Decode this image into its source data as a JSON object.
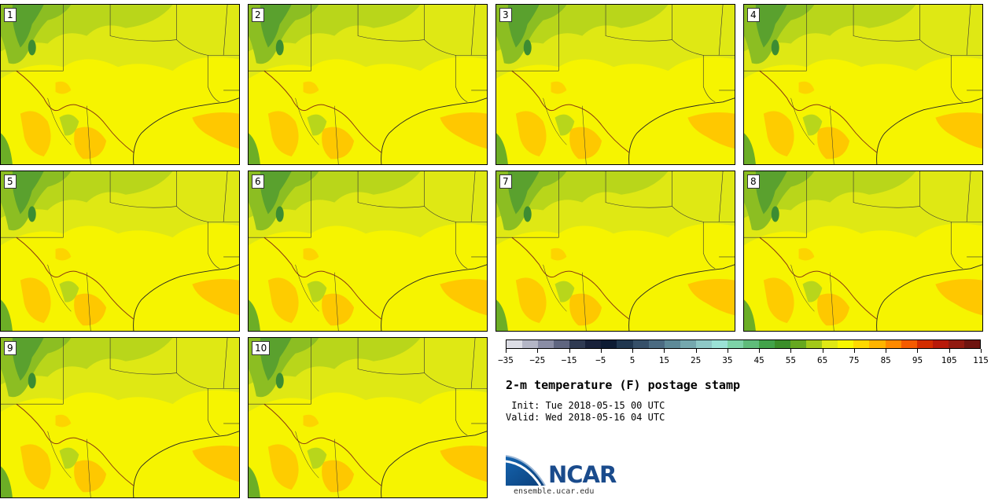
{
  "panels": [
    {
      "label": "1"
    },
    {
      "label": "2"
    },
    {
      "label": "3"
    },
    {
      "label": "4"
    },
    {
      "label": "5"
    },
    {
      "label": "6"
    },
    {
      "label": "7"
    },
    {
      "label": "8"
    },
    {
      "label": "9"
    },
    {
      "label": "10"
    }
  ],
  "colorbar": {
    "colors": [
      "#dcdde5",
      "#b4b6c6",
      "#8a8da5",
      "#5f6580",
      "#2f3a52",
      "#18213a",
      "#0d1b33",
      "#203750",
      "#365069",
      "#4b6b82",
      "#5e8a98",
      "#75a8ae",
      "#8ec8c6",
      "#9be2d6",
      "#7ed3a8",
      "#5fbc7a",
      "#42a34a",
      "#3b8f2a",
      "#66a81f",
      "#a3c91a",
      "#dfe814",
      "#f8f700",
      "#ffd800",
      "#ffb400",
      "#ff8a00",
      "#f55b00",
      "#d42d00",
      "#b81a0a",
      "#921a10",
      "#6f1410"
    ],
    "tick_labels": [
      "−35",
      "−25",
      "−15",
      "−5",
      "5",
      "15",
      "25",
      "35",
      "45",
      "55",
      "65",
      "75",
      "85",
      "95",
      "105",
      "115"
    ]
  },
  "title": "2-m temperature (F) postage stamp",
  "init": " Init: Tue 2018-05-15 00 UTC",
  "valid": "Valid: Wed 2018-05-16 04 UTC",
  "logo": {
    "text": "NCAR",
    "url": "ensemble.ucar.edu",
    "color": "#1a4b8c"
  }
}
